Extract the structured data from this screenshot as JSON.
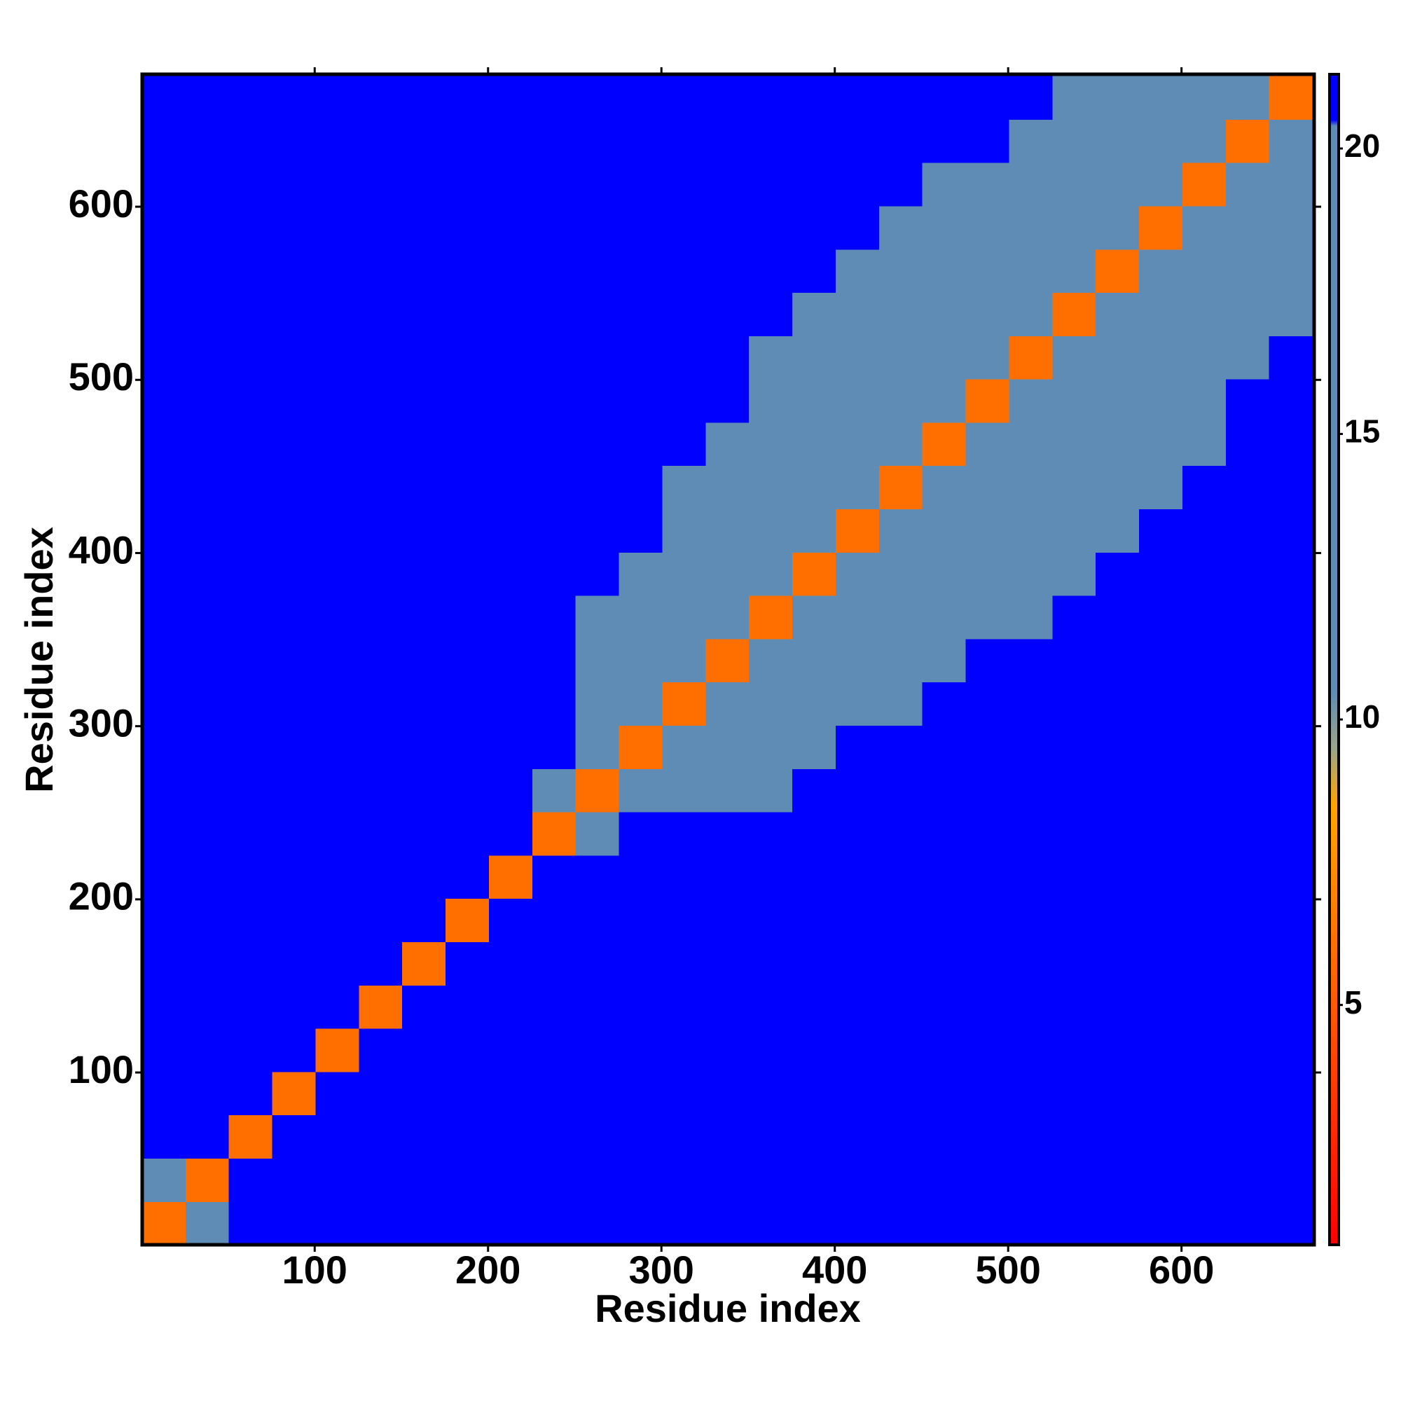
{
  "chart_data": {
    "type": "heatmap",
    "xlabel": "Residue index",
    "ylabel": "Residue index",
    "xlim": [
      0.5,
      676.5
    ],
    "ylim": [
      0.5,
      676.5
    ],
    "xticks": [
      100,
      200,
      300,
      400,
      500,
      600
    ],
    "yticks": [
      100,
      200,
      300,
      400,
      500,
      600
    ],
    "xbins": [
      0.5,
      25.5,
      50.5,
      75.5,
      100.5,
      125.5,
      150.5,
      175.5,
      200.5,
      225.5,
      250.5,
      275.5,
      300.5,
      325.5,
      350.5,
      375.5,
      400.5,
      425.5,
      450.5,
      475.5,
      500.5,
      525.5,
      550.5,
      575.5,
      600.5,
      625.5,
      650.5,
      676.5
    ],
    "ybins": [
      0.5,
      25.5,
      50.5,
      75.5,
      100.5,
      125.5,
      150.5,
      175.5,
      200.5,
      225.5,
      250.5,
      275.5,
      300.5,
      325.5,
      350.5,
      375.5,
      400.5,
      425.5,
      450.5,
      475.5,
      500.5,
      525.5,
      550.5,
      575.5,
      600.5,
      625.5,
      650.5,
      676.5
    ],
    "z": [
      [
        6,
        15,
        21,
        21,
        21,
        21,
        21,
        21,
        21,
        21,
        21,
        21,
        21,
        21,
        21,
        21,
        21,
        21,
        21,
        21,
        21,
        21,
        21,
        21,
        21,
        21,
        21
      ],
      [
        15,
        6,
        21,
        21,
        21,
        21,
        21,
        21,
        21,
        21,
        21,
        21,
        21,
        21,
        21,
        21,
        21,
        21,
        21,
        21,
        21,
        21,
        21,
        21,
        21,
        21,
        21
      ],
      [
        21,
        21,
        6,
        21,
        21,
        21,
        21,
        21,
        21,
        21,
        21,
        21,
        21,
        21,
        21,
        21,
        21,
        21,
        21,
        21,
        21,
        21,
        21,
        21,
        21,
        21,
        21
      ],
      [
        21,
        21,
        21,
        6,
        21,
        21,
        21,
        21,
        21,
        21,
        21,
        21,
        21,
        21,
        21,
        21,
        21,
        21,
        21,
        21,
        21,
        21,
        21,
        21,
        21,
        21,
        21
      ],
      [
        21,
        21,
        21,
        21,
        6,
        21,
        21,
        21,
        21,
        21,
        21,
        21,
        21,
        21,
        21,
        21,
        21,
        21,
        21,
        21,
        21,
        21,
        21,
        21,
        21,
        21,
        21
      ],
      [
        21,
        21,
        21,
        21,
        21,
        6,
        21,
        21,
        21,
        21,
        21,
        21,
        21,
        21,
        21,
        21,
        21,
        21,
        21,
        21,
        21,
        21,
        21,
        21,
        21,
        21,
        21
      ],
      [
        21,
        21,
        21,
        21,
        21,
        21,
        6,
        21,
        21,
        21,
        21,
        21,
        21,
        21,
        21,
        21,
        21,
        21,
        21,
        21,
        21,
        21,
        21,
        21,
        21,
        21,
        21
      ],
      [
        21,
        21,
        21,
        21,
        21,
        21,
        21,
        6,
        21,
        21,
        21,
        21,
        21,
        21,
        21,
        21,
        21,
        21,
        21,
        21,
        21,
        21,
        21,
        21,
        21,
        21,
        21
      ],
      [
        21,
        21,
        21,
        21,
        21,
        21,
        21,
        21,
        6,
        21,
        21,
        21,
        21,
        21,
        21,
        21,
        21,
        21,
        21,
        21,
        21,
        21,
        21,
        21,
        21,
        21,
        21
      ],
      [
        21,
        21,
        21,
        21,
        21,
        21,
        21,
        21,
        21,
        6,
        15,
        21,
        21,
        21,
        21,
        21,
        21,
        21,
        21,
        21,
        21,
        21,
        21,
        21,
        21,
        21,
        21
      ],
      [
        21,
        21,
        21,
        21,
        21,
        21,
        21,
        21,
        21,
        15,
        6,
        15,
        16,
        17,
        18,
        21,
        21,
        21,
        21,
        21,
        21,
        21,
        21,
        21,
        21,
        21,
        21
      ],
      [
        21,
        21,
        21,
        21,
        21,
        21,
        21,
        21,
        21,
        21,
        15,
        6,
        15,
        16,
        17,
        18,
        21,
        21,
        21,
        21,
        21,
        21,
        21,
        21,
        21,
        21,
        21
      ],
      [
        21,
        21,
        21,
        21,
        21,
        21,
        21,
        21,
        21,
        21,
        16,
        15,
        6,
        15,
        16,
        17,
        18,
        19,
        21,
        21,
        21,
        21,
        21,
        21,
        21,
        21,
        21
      ],
      [
        21,
        21,
        21,
        21,
        21,
        21,
        21,
        21,
        21,
        21,
        17,
        16,
        15,
        6,
        15,
        16,
        17,
        18,
        19,
        21,
        21,
        21,
        21,
        21,
        21,
        21,
        21
      ],
      [
        21,
        21,
        21,
        21,
        21,
        21,
        21,
        21,
        21,
        21,
        18,
        17,
        16,
        15,
        6,
        15,
        16,
        17,
        18,
        19,
        19,
        21,
        21,
        21,
        21,
        21,
        21
      ],
      [
        21,
        21,
        21,
        21,
        21,
        21,
        21,
        21,
        21,
        21,
        21,
        18,
        17,
        16,
        15,
        6,
        15,
        16,
        17,
        18,
        19,
        19,
        21,
        21,
        21,
        21,
        21
      ],
      [
        21,
        21,
        21,
        21,
        21,
        21,
        21,
        21,
        21,
        21,
        21,
        21,
        18,
        17,
        16,
        15,
        6,
        15,
        16,
        17,
        18,
        19,
        19,
        21,
        21,
        21,
        21
      ],
      [
        21,
        21,
        21,
        21,
        21,
        21,
        21,
        21,
        21,
        21,
        21,
        21,
        19,
        18,
        17,
        16,
        15,
        6,
        15,
        16,
        17,
        18,
        19,
        19,
        21,
        21,
        21
      ],
      [
        21,
        21,
        21,
        21,
        21,
        21,
        21,
        21,
        21,
        21,
        21,
        21,
        21,
        19,
        18,
        17,
        16,
        15,
        6,
        15,
        16,
        17,
        18,
        19,
        19,
        21,
        21
      ],
      [
        21,
        21,
        21,
        21,
        21,
        21,
        21,
        21,
        21,
        21,
        21,
        21,
        21,
        21,
        19,
        18,
        17,
        16,
        15,
        6,
        15,
        16,
        17,
        18,
        19,
        21,
        21
      ],
      [
        21,
        21,
        21,
        21,
        21,
        21,
        21,
        21,
        21,
        21,
        21,
        21,
        21,
        21,
        19,
        19,
        18,
        17,
        16,
        15,
        6,
        15,
        16,
        17,
        18,
        19,
        21
      ],
      [
        21,
        21,
        21,
        21,
        21,
        21,
        21,
        21,
        21,
        21,
        21,
        21,
        21,
        21,
        21,
        19,
        19,
        18,
        17,
        16,
        15,
        6,
        15,
        16,
        17,
        18,
        19
      ],
      [
        21,
        21,
        21,
        21,
        21,
        21,
        21,
        21,
        21,
        21,
        21,
        21,
        21,
        21,
        21,
        21,
        19,
        19,
        18,
        17,
        16,
        15,
        6,
        15,
        16,
        17,
        18
      ],
      [
        21,
        21,
        21,
        21,
        21,
        21,
        21,
        21,
        21,
        21,
        21,
        21,
        21,
        21,
        21,
        21,
        21,
        19,
        19,
        18,
        17,
        16,
        15,
        6,
        15,
        16,
        17
      ],
      [
        21,
        21,
        21,
        21,
        21,
        21,
        21,
        21,
        21,
        21,
        21,
        21,
        21,
        21,
        21,
        21,
        21,
        21,
        19,
        19,
        18,
        17,
        16,
        15,
        6,
        15,
        16
      ],
      [
        21,
        21,
        21,
        21,
        21,
        21,
        21,
        21,
        21,
        21,
        21,
        21,
        21,
        21,
        21,
        21,
        21,
        21,
        21,
        21,
        19,
        18,
        17,
        16,
        15,
        6,
        15
      ],
      [
        21,
        21,
        21,
        21,
        21,
        21,
        21,
        21,
        21,
        21,
        21,
        21,
        21,
        21,
        21,
        21,
        21,
        21,
        21,
        21,
        21,
        19,
        18,
        17,
        16,
        15,
        6
      ]
    ],
    "colorscale": [
      [
        0.8,
        "#ff0000"
      ],
      [
        5,
        "#ff5a00"
      ],
      [
        8.5,
        "#ffa500"
      ],
      [
        9.5,
        "#9aa58a"
      ],
      [
        10.5,
        "#5f8cb4"
      ],
      [
        20.4,
        "#5f8cb4"
      ],
      [
        20.5,
        "#0000ff"
      ],
      [
        21.3,
        "#0000ff"
      ]
    ],
    "clim": [
      0.8,
      21.3
    ],
    "cticks": [
      5,
      10,
      15,
      20
    ]
  }
}
